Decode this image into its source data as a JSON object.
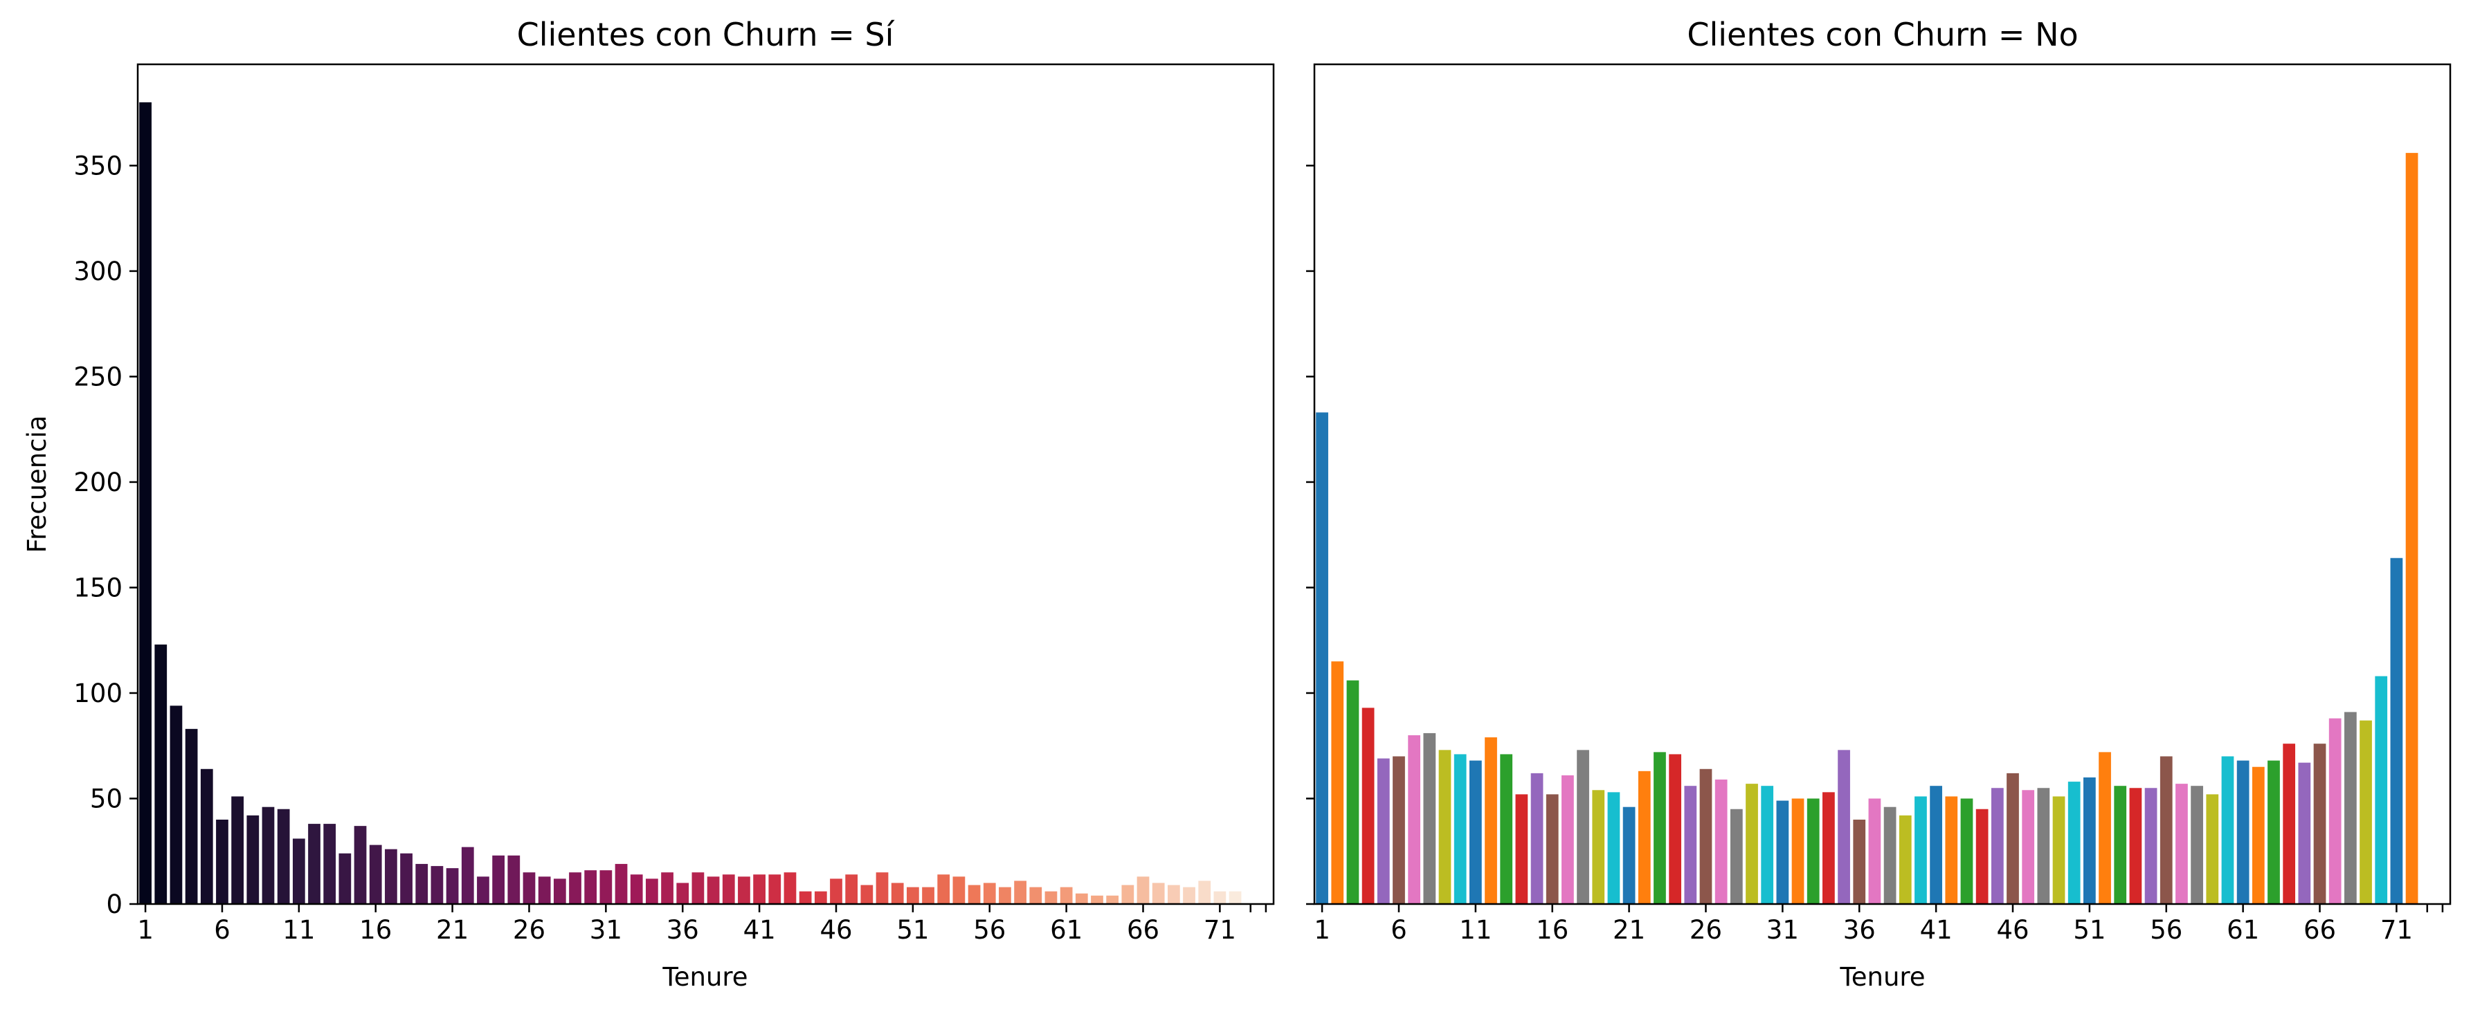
{
  "chart_data": [
    {
      "type": "bar",
      "title": "Clientes con Churn = Sí",
      "xlabel": "Tenure",
      "ylabel": "Frecuencia",
      "ylim": [
        0,
        398
      ],
      "yticks": [
        0,
        50,
        100,
        150,
        200,
        250,
        300,
        350
      ],
      "xticks": [
        1,
        6,
        11,
        16,
        21,
        26,
        31,
        36,
        41,
        46,
        51,
        56,
        61,
        66,
        71
      ],
      "grid": false,
      "palette": "rocket (dark to light by tenure)",
      "categories": [
        1,
        2,
        3,
        4,
        5,
        6,
        7,
        8,
        9,
        10,
        11,
        12,
        13,
        14,
        15,
        16,
        17,
        18,
        19,
        20,
        21,
        22,
        23,
        24,
        25,
        26,
        27,
        28,
        29,
        30,
        31,
        32,
        33,
        34,
        35,
        36,
        37,
        38,
        39,
        40,
        41,
        42,
        43,
        44,
        45,
        46,
        47,
        48,
        49,
        50,
        51,
        52,
        53,
        54,
        55,
        56,
        57,
        58,
        59,
        60,
        61,
        62,
        63,
        64,
        65,
        66,
        67,
        68,
        69,
        70,
        71,
        72
      ],
      "values": [
        380,
        123,
        94,
        83,
        64,
        40,
        51,
        42,
        46,
        45,
        31,
        38,
        38,
        24,
        37,
        28,
        26,
        24,
        19,
        18,
        17,
        27,
        13,
        23,
        23,
        15,
        13,
        12,
        15,
        16,
        16,
        19,
        14,
        12,
        15,
        10,
        15,
        13,
        14,
        13,
        14,
        14,
        15,
        6,
        6,
        12,
        14,
        9,
        15,
        10,
        8,
        8,
        14,
        13,
        9,
        10,
        8,
        11,
        8,
        6,
        8,
        5,
        4,
        4,
        9,
        13,
        10,
        9,
        8,
        11,
        6,
        6
      ]
    },
    {
      "type": "bar",
      "title": "Clientes con Churn = No",
      "xlabel": "Tenure",
      "ylabel": "",
      "ylim": [
        0,
        398
      ],
      "yticks": [
        0,
        50,
        100,
        150,
        200,
        250,
        300,
        350
      ],
      "xticks": [
        1,
        6,
        11,
        16,
        21,
        26,
        31,
        36,
        41,
        46,
        51,
        56,
        61,
        66,
        71
      ],
      "grid": false,
      "categories": [
        1,
        2,
        3,
        4,
        5,
        6,
        7,
        8,
        9,
        10,
        11,
        12,
        13,
        14,
        15,
        16,
        17,
        18,
        19,
        20,
        21,
        22,
        23,
        24,
        25,
        26,
        27,
        28,
        29,
        30,
        31,
        32,
        33,
        34,
        35,
        36,
        37,
        38,
        39,
        40,
        41,
        42,
        43,
        44,
        45,
        46,
        47,
        48,
        49,
        50,
        51,
        52,
        53,
        54,
        55,
        56,
        57,
        58,
        59,
        60,
        61,
        62,
        63,
        64,
        65,
        66,
        67,
        68,
        69,
        70,
        71,
        72
      ],
      "values": [
        233,
        115,
        106,
        93,
        69,
        70,
        80,
        81,
        73,
        71,
        68,
        79,
        71,
        52,
        62,
        52,
        61,
        73,
        54,
        53,
        46,
        63,
        72,
        71,
        56,
        64,
        59,
        45,
        57,
        56,
        49,
        50,
        50,
        53,
        73,
        40,
        50,
        46,
        42,
        51,
        56,
        51,
        50,
        45,
        55,
        62,
        54,
        55,
        51,
        58,
        60,
        72,
        56,
        55,
        55,
        70,
        57,
        56,
        52,
        70,
        68,
        65,
        68,
        76,
        67,
        76,
        88,
        91,
        87,
        108,
        164,
        356
      ],
      "colors": [
        "#1f77b4",
        "#ff7f0e",
        "#2ca02c",
        "#d62728",
        "#9467bd",
        "#8c564b",
        "#e377c2",
        "#7f7f7f",
        "#bcbd22",
        "#17becf"
      ]
    }
  ]
}
